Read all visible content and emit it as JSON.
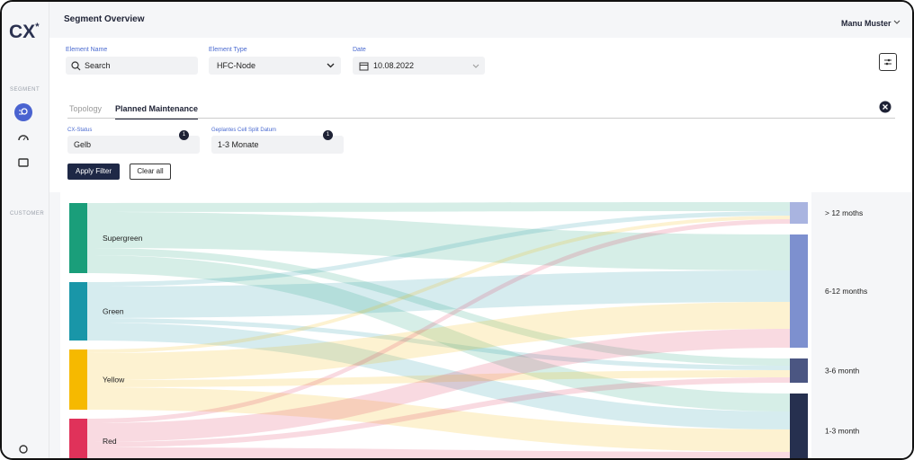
{
  "sidebar": {
    "logo": "CX",
    "logo_mark": "*",
    "sections": [
      "SEGMENT",
      "CUSTOMER"
    ]
  },
  "header": {
    "title": "Segment Overview",
    "user": "Manu Muster"
  },
  "filters": [
    {
      "label": "Element Name",
      "value": "Search"
    },
    {
      "label": "Element Type",
      "value": "HFC-Node"
    },
    {
      "label": "Date",
      "value": "10.08.2022"
    }
  ],
  "tabs": [
    "Topology",
    "Planned Maintenance"
  ],
  "active_filters": [
    {
      "label": "CX-Status",
      "value": "Gelb",
      "count": 1
    },
    {
      "label": "Geplantes Cell Split Datum",
      "value": "1-3 Monate",
      "count": 1
    }
  ],
  "buttons": {
    "apply": "Apply Filter",
    "clear": "Clear all"
  },
  "sankey": {
    "type": "sankey",
    "sources": [
      {
        "name": "Supergreen",
        "color": "#1a9e7a"
      },
      {
        "name": "Green",
        "color": "#1996a8"
      },
      {
        "name": "Yellow",
        "color": "#f6b900"
      },
      {
        "name": "Red",
        "color": "#e0325a"
      }
    ],
    "targets": [
      {
        "name": "> 12 moths",
        "color": "#a9b4e0"
      },
      {
        "name": "6-12 months",
        "color": "#7d90cf"
      },
      {
        "name": "3-6 month",
        "color": "#4b5682"
      },
      {
        "name": "1-3  month",
        "color": "#26304f"
      }
    ],
    "links": [
      {
        "source": 0,
        "target": 0,
        "value": 10
      },
      {
        "source": 0,
        "target": 1,
        "value": 40
      },
      {
        "source": 0,
        "target": 2,
        "value": 8
      },
      {
        "source": 0,
        "target": 3,
        "value": 20
      },
      {
        "source": 1,
        "target": 0,
        "value": 5
      },
      {
        "source": 1,
        "target": 1,
        "value": 35
      },
      {
        "source": 1,
        "target": 2,
        "value": 5
      },
      {
        "source": 1,
        "target": 3,
        "value": 20
      },
      {
        "source": 2,
        "target": 0,
        "value": 4
      },
      {
        "source": 2,
        "target": 1,
        "value": 30
      },
      {
        "source": 2,
        "target": 2,
        "value": 8
      },
      {
        "source": 2,
        "target": 3,
        "value": 25
      },
      {
        "source": 3,
        "target": 0,
        "value": 5
      },
      {
        "source": 3,
        "target": 1,
        "value": 21
      },
      {
        "source": 3,
        "target": 2,
        "value": 6
      },
      {
        "source": 3,
        "target": 3,
        "value": 18
      }
    ]
  }
}
